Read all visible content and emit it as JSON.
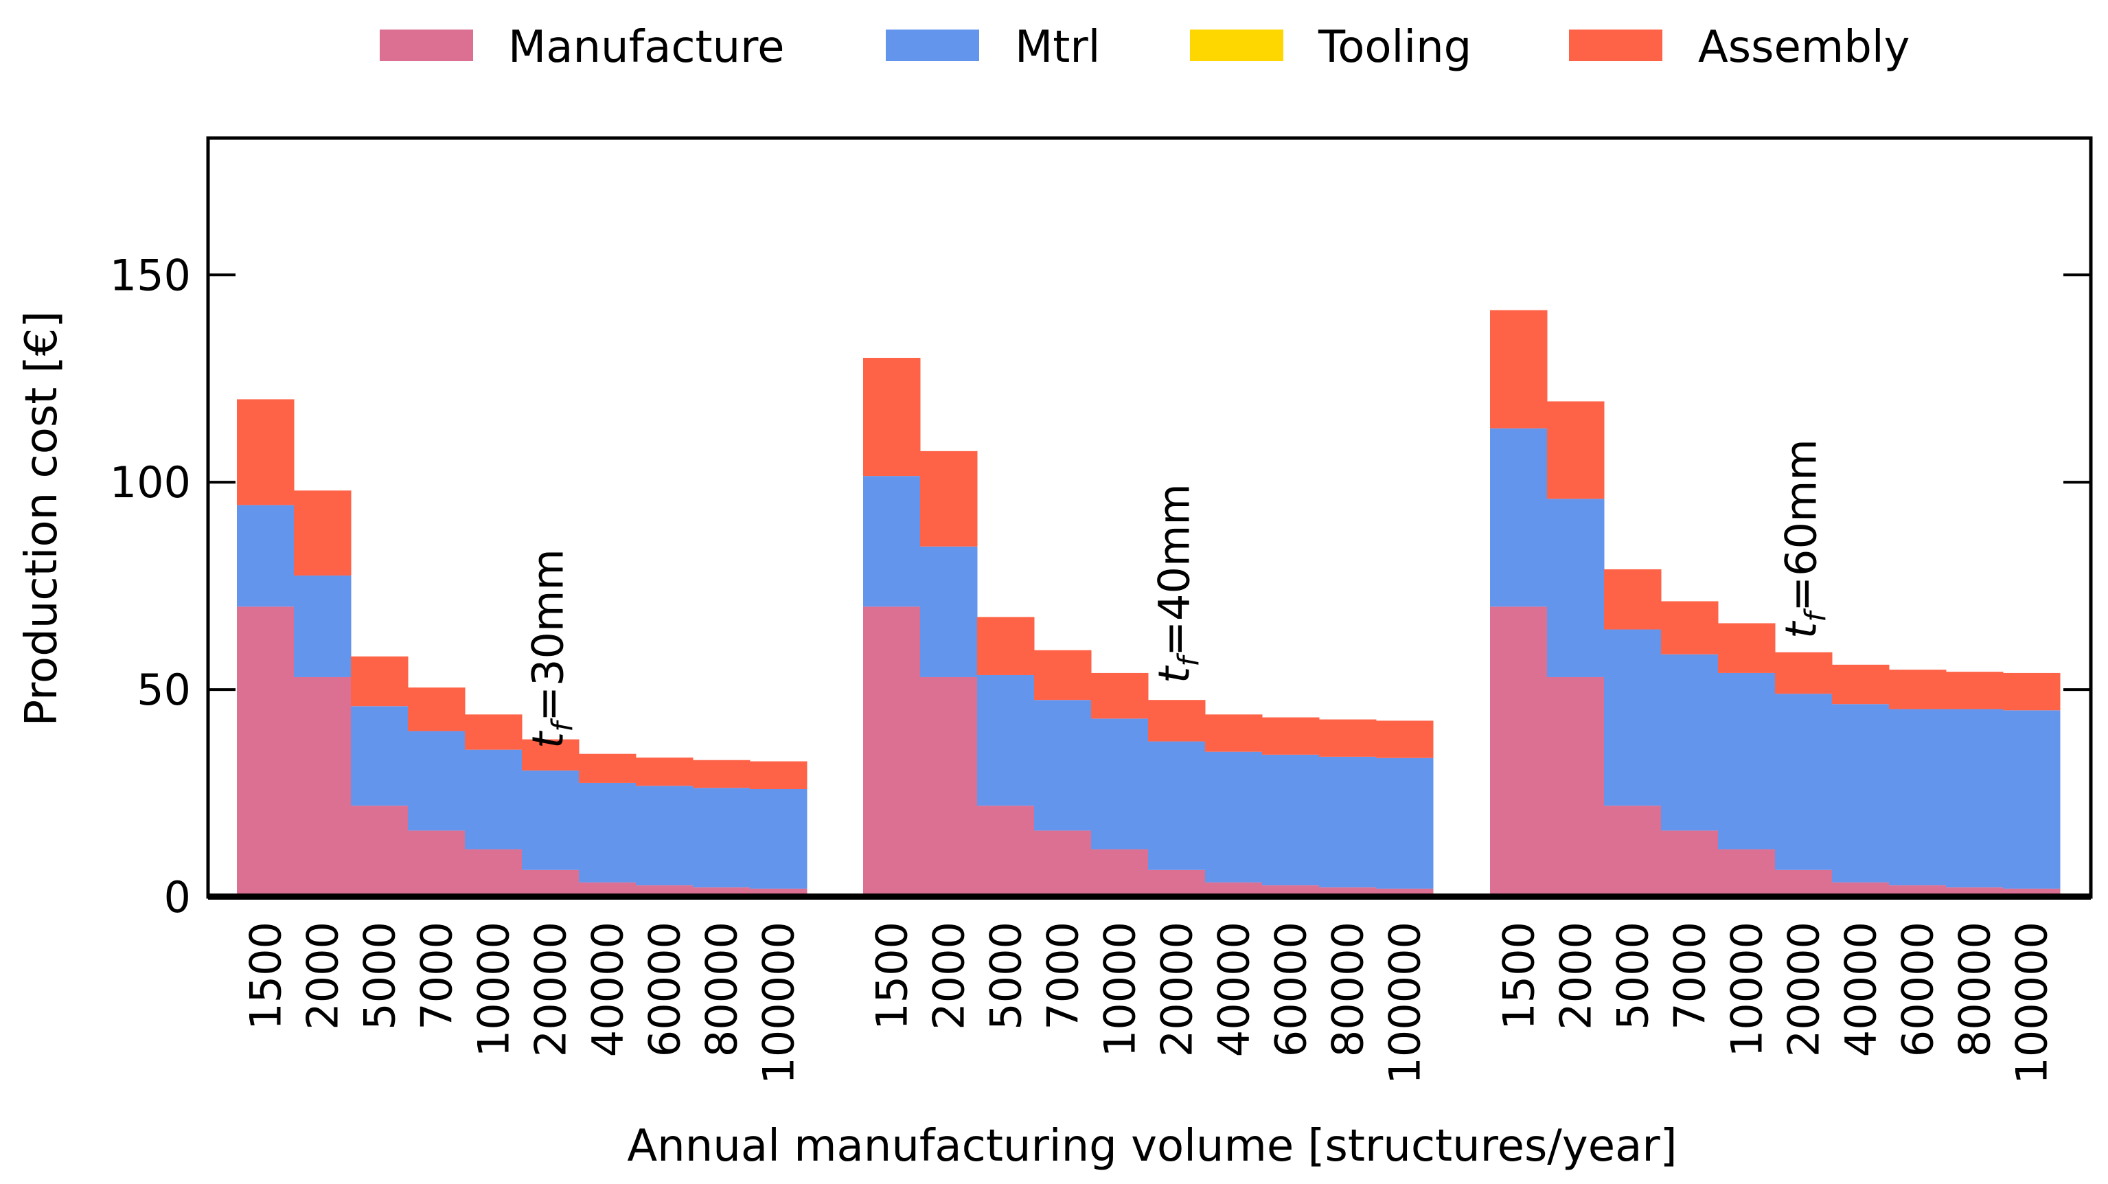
{
  "chart_data": {
    "type": "bar",
    "stacked": true,
    "xlabel": "Annual manufacturing volume [structures/year]",
    "ylabel": "Production cost [€]",
    "ylim": [
      0,
      183
    ],
    "yticks": [
      0,
      50,
      100,
      150
    ],
    "grid": false,
    "legend_position": "top",
    "categories": [
      "1500",
      "2000",
      "5000",
      "7000",
      "10000",
      "20000",
      "40000",
      "60000",
      "80000",
      "100000"
    ],
    "series_names": [
      "Manufacture",
      "Mtrl",
      "Tooling",
      "Assembly"
    ],
    "colors": {
      "Manufacture": "#DB7093",
      "Mtrl": "#6495ED",
      "Tooling": "#FFD700",
      "Assembly": "#FF6347"
    },
    "groups": [
      {
        "label_t": "t",
        "label_sub": "f",
        "label_rest": "=30mm",
        "series": [
          {
            "name": "Manufacture",
            "values": [
              70,
              53,
              22,
              16,
              11.5,
              6.5,
              3.5,
              2.8,
              2.3,
              2.0
            ]
          },
          {
            "name": "Mtrl",
            "values": [
              24.5,
              24.5,
              24,
              24,
              24,
              24,
              24,
              24,
              24,
              24
            ]
          },
          {
            "name": "Tooling",
            "values": [
              0,
              0,
              0,
              0,
              0,
              0,
              0,
              0,
              0,
              0
            ]
          },
          {
            "name": "Assembly",
            "values": [
              25.5,
              20.5,
              12,
              10.5,
              8.5,
              7.5,
              7,
              6.8,
              6.7,
              6.7
            ]
          }
        ]
      },
      {
        "label_t": "t",
        "label_sub": "f",
        "label_rest": "=40mm",
        "series": [
          {
            "name": "Manufacture",
            "values": [
              70,
              53,
              22,
              16,
              11.5,
              6.5,
              3.5,
              2.8,
              2.3,
              2.0
            ]
          },
          {
            "name": "Mtrl",
            "values": [
              31.5,
              31.5,
              31.5,
              31.5,
              31.5,
              31,
              31.5,
              31.5,
              31.5,
              31.5
            ]
          },
          {
            "name": "Tooling",
            "values": [
              0,
              0,
              0,
              0,
              0,
              0,
              0,
              0,
              0,
              0
            ]
          },
          {
            "name": "Assembly",
            "values": [
              28.5,
              23,
              14,
              12,
              11,
              10,
              9,
              9,
              9,
              9
            ]
          }
        ]
      },
      {
        "label_t": "t",
        "label_sub": "f",
        "label_rest": "=60mm",
        "series": [
          {
            "name": "Manufacture",
            "values": [
              70,
              53,
              22,
              16,
              11.5,
              6.5,
              3.5,
              2.8,
              2.3,
              2.0
            ]
          },
          {
            "name": "Mtrl",
            "values": [
              43,
              43,
              42.5,
              42.5,
              42.5,
              42.5,
              43,
              42.5,
              43,
              43
            ]
          },
          {
            "name": "Tooling",
            "values": [
              0,
              0,
              0,
              0,
              0,
              0,
              0,
              0,
              0,
              0
            ]
          },
          {
            "name": "Assembly",
            "values": [
              28.5,
              23.5,
              14.5,
              12.8,
              12,
              10,
              9.5,
              9.5,
              9,
              9
            ]
          }
        ]
      }
    ]
  }
}
